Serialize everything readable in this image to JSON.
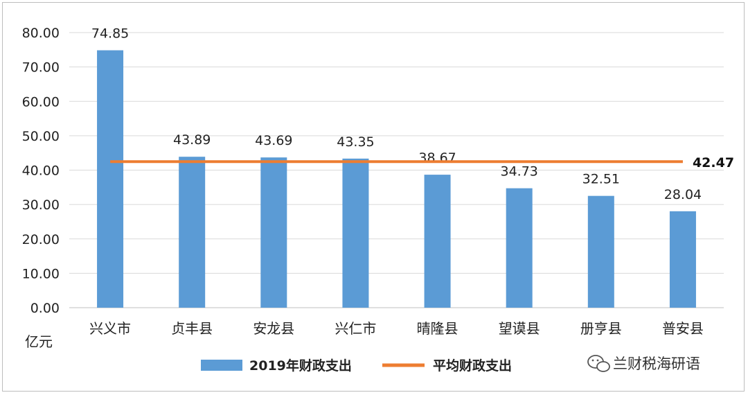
{
  "chart_data": {
    "type": "bar",
    "categories": [
      "兴义市",
      "贞丰县",
      "安龙县",
      "兴仁市",
      "晴隆县",
      "望谟县",
      "册亨县",
      "普安县"
    ],
    "series": [
      {
        "name": "2019年财政支出",
        "type": "bar",
        "values": [
          74.85,
          43.89,
          43.69,
          43.35,
          38.67,
          34.73,
          32.51,
          28.04
        ],
        "labels": [
          "74.85",
          "43.89",
          "43.69",
          "43.35",
          "38.67",
          "34.73",
          "32.51",
          "28.04"
        ],
        "color": "#5b9bd5"
      },
      {
        "name": "平均财政支出",
        "type": "line",
        "value": 42.47,
        "label": "42.47",
        "color": "#ed7d31"
      }
    ],
    "ylim": [
      0,
      80
    ],
    "yticks": [
      "0.00",
      "10.00",
      "20.00",
      "30.00",
      "40.00",
      "50.00",
      "60.00",
      "70.00",
      "80.00"
    ],
    "unit": "亿元",
    "grid": true,
    "legend": "bottom"
  },
  "watermark": {
    "icon": "wechat-icon",
    "text": "兰财税海研语"
  }
}
